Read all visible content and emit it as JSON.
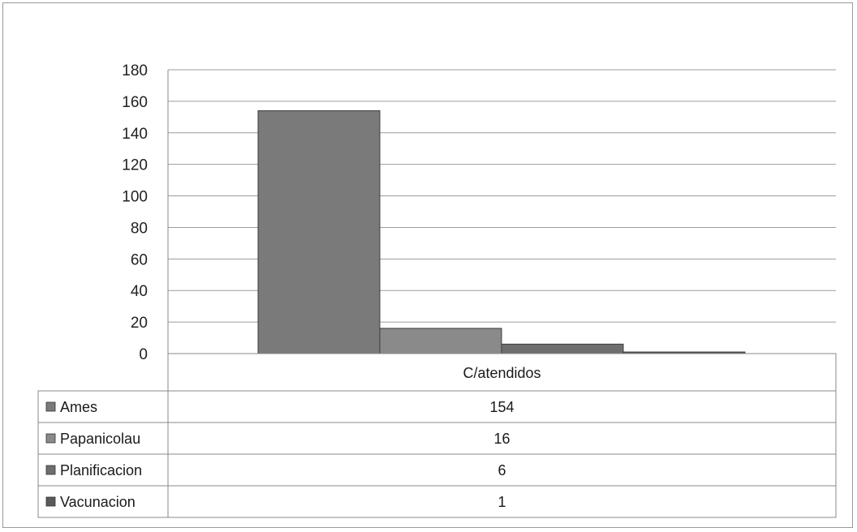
{
  "chart_data": {
    "type": "bar",
    "categories": [
      "C/atendidos"
    ],
    "series": [
      {
        "name": "Ames",
        "values": [
          154
        ],
        "color": "#7a7a7a"
      },
      {
        "name": "Papanicolau",
        "values": [
          16
        ],
        "color": "#8a8a8a"
      },
      {
        "name": "Planificacion",
        "values": [
          6
        ],
        "color": "#6e6e6e"
      },
      {
        "name": "Vacunacion",
        "values": [
          1
        ],
        "color": "#5a5a5a"
      }
    ],
    "ylim": [
      0,
      180
    ],
    "yticks": [
      0,
      20,
      40,
      60,
      80,
      100,
      120,
      140,
      160,
      180
    ],
    "grid": true,
    "data_table": true,
    "title": "",
    "xlabel": "",
    "ylabel": ""
  }
}
